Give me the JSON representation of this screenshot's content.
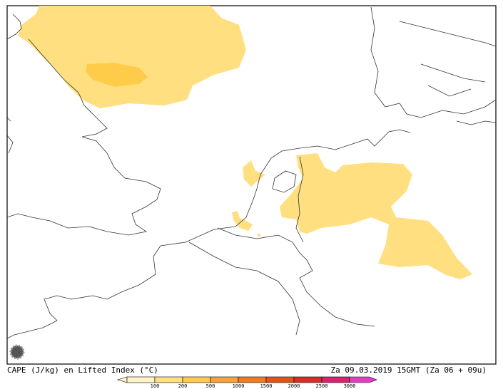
{
  "footer": {
    "left": "CAPE (J/kg) en Lifted Index (°C)",
    "right": "Za 09.03.2019 15GMT (Za 06 + 09u)"
  },
  "legend": {
    "labels": [
      100,
      200,
      500,
      1000,
      1500,
      2000,
      2500,
      3000
    ],
    "colors": [
      "#fff3c8",
      "#ffe080",
      "#ffcc48",
      "#f8a430",
      "#f07c20",
      "#e8501c",
      "#e02a2a",
      "#e0206c",
      "#e040c0"
    ]
  }
}
